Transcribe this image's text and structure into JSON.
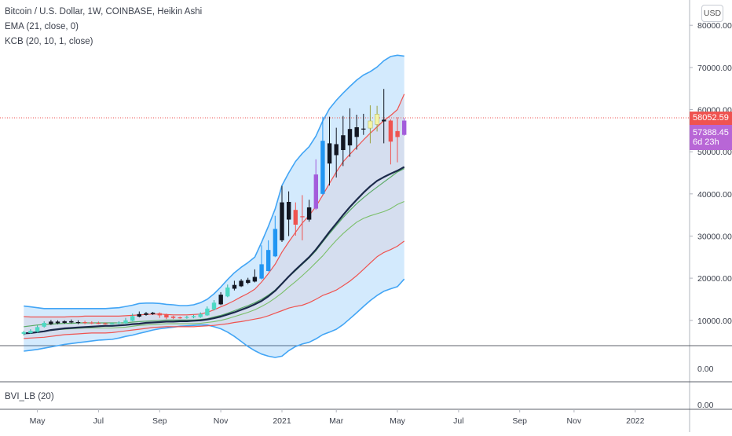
{
  "header": {
    "symbol_line": "Bitcoin / U.S. Dollar, 1W, COINBASE, Heikin Ashi",
    "ema_label": "EMA (21, close, 0)",
    "kcb_label": "KCB (20, 10, 1, close)"
  },
  "currency_button": "USD",
  "price_tags": {
    "last_price": "58052.59",
    "current_price": "57388.45",
    "countdown": "6d 23h"
  },
  "lower_pane": {
    "indicator1_tick": "0.00",
    "indicator2_label": "BVI_LB (20)",
    "indicator2_tick": "0.00"
  },
  "colors": {
    "bull_cyan": "#4dd9c4",
    "bear_red": "#ef5350",
    "black_candle": "#131722",
    "blue_candle": "#2196f3",
    "violet_candle": "#a35ddb",
    "yellow_candle": "#f4f4a6",
    "band_outer": "#42a5f5",
    "band_red": "#ef5350",
    "band_green": "#5aaa66",
    "ema_dark": "#1b2a4a",
    "last_price_tag": "#ef5350",
    "current_price_tag": "#b866d6"
  },
  "chart_data": {
    "type": "candlestick",
    "title": "Bitcoin / U.S. Dollar, 1W, COINBASE, Heikin Ashi",
    "y_axis": {
      "ticks": [
        "10000.00",
        "20000.00",
        "30000.00",
        "40000.00",
        "50000.00",
        "60000.00",
        "70000.00",
        "80000.00"
      ],
      "tick_values": [
        10000,
        20000,
        30000,
        40000,
        50000,
        60000,
        70000,
        80000
      ],
      "range": [
        4000,
        86000
      ]
    },
    "x_axis": {
      "ticks": [
        "May",
        "Jul",
        "Sep",
        "Nov",
        "2021",
        "Mar",
        "May",
        "Jul",
        "Sep",
        "Nov",
        "2022"
      ],
      "tick_index": [
        2,
        11,
        20,
        29,
        38,
        46,
        55,
        64,
        73,
        81,
        90
      ],
      "index_range": [
        -3.5,
        98
      ]
    },
    "candles": [
      {
        "i": 0,
        "o": 6800,
        "c": 7200,
        "h": 7500,
        "l": 6400,
        "color": "bull_cyan"
      },
      {
        "i": 1,
        "o": 7000,
        "c": 7500,
        "h": 7900,
        "l": 6800,
        "color": "bull_cyan"
      },
      {
        "i": 2,
        "o": 7300,
        "c": 8400,
        "h": 8800,
        "l": 7100,
        "color": "bull_cyan"
      },
      {
        "i": 3,
        "o": 8500,
        "c": 9400,
        "h": 9800,
        "l": 8300,
        "color": "bull_cyan"
      },
      {
        "i": 4,
        "o": 9100,
        "c": 9700,
        "h": 10100,
        "l": 8900,
        "color": "black_candle"
      },
      {
        "i": 5,
        "o": 9300,
        "c": 9700,
        "h": 10000,
        "l": 9100,
        "color": "black_candle"
      },
      {
        "i": 6,
        "o": 9400,
        "c": 9800,
        "h": 10000,
        "l": 9200,
        "color": "black_candle"
      },
      {
        "i": 7,
        "o": 9500,
        "c": 9800,
        "h": 10200,
        "l": 9300,
        "color": "black_candle"
      },
      {
        "i": 8,
        "o": 9400,
        "c": 9600,
        "h": 10000,
        "l": 9100,
        "color": "black_candle"
      },
      {
        "i": 9,
        "o": 9600,
        "c": 9400,
        "h": 9900,
        "l": 9100,
        "color": "bear_red"
      },
      {
        "i": 10,
        "o": 9500,
        "c": 9300,
        "h": 9800,
        "l": 9100,
        "color": "bear_red"
      },
      {
        "i": 11,
        "o": 9400,
        "c": 9300,
        "h": 9700,
        "l": 9100,
        "color": "bear_red"
      },
      {
        "i": 12,
        "o": 9300,
        "c": 9200,
        "h": 9500,
        "l": 9000,
        "color": "bear_red"
      },
      {
        "i": 13,
        "o": 9200,
        "c": 9300,
        "h": 9500,
        "l": 9000,
        "color": "bull_cyan"
      },
      {
        "i": 14,
        "o": 9300,
        "c": 9500,
        "h": 9800,
        "l": 9100,
        "color": "bull_cyan"
      },
      {
        "i": 15,
        "o": 9300,
        "c": 10000,
        "h": 10600,
        "l": 9200,
        "color": "bull_cyan"
      },
      {
        "i": 16,
        "o": 9900,
        "c": 11000,
        "h": 11600,
        "l": 9800,
        "color": "bull_cyan"
      },
      {
        "i": 17,
        "o": 10900,
        "c": 11500,
        "h": 12100,
        "l": 10700,
        "color": "black_candle"
      },
      {
        "i": 18,
        "o": 11300,
        "c": 11700,
        "h": 12000,
        "l": 11100,
        "color": "black_candle"
      },
      {
        "i": 19,
        "o": 11500,
        "c": 11800,
        "h": 12000,
        "l": 11300,
        "color": "black_candle"
      },
      {
        "i": 20,
        "o": 11700,
        "c": 11200,
        "h": 11900,
        "l": 10600,
        "color": "bear_red"
      },
      {
        "i": 21,
        "o": 11400,
        "c": 10700,
        "h": 11600,
        "l": 10300,
        "color": "bear_red"
      },
      {
        "i": 22,
        "o": 10900,
        "c": 10600,
        "h": 11100,
        "l": 10300,
        "color": "bear_red"
      },
      {
        "i": 23,
        "o": 10700,
        "c": 10600,
        "h": 10900,
        "l": 10400,
        "color": "bear_red"
      },
      {
        "i": 24,
        "o": 10600,
        "c": 10800,
        "h": 11100,
        "l": 10400,
        "color": "bull_cyan"
      },
      {
        "i": 25,
        "o": 10700,
        "c": 11000,
        "h": 11300,
        "l": 10500,
        "color": "bull_cyan"
      },
      {
        "i": 26,
        "o": 10800,
        "c": 11500,
        "h": 11900,
        "l": 10600,
        "color": "bull_cyan"
      },
      {
        "i": 27,
        "o": 11200,
        "c": 12800,
        "h": 13300,
        "l": 11100,
        "color": "bull_cyan"
      },
      {
        "i": 28,
        "o": 12600,
        "c": 14200,
        "h": 14800,
        "l": 12400,
        "color": "bull_cyan"
      },
      {
        "i": 29,
        "o": 13800,
        "c": 16100,
        "h": 16700,
        "l": 13600,
        "color": "black_candle"
      },
      {
        "i": 30,
        "o": 15700,
        "c": 17800,
        "h": 18500,
        "l": 15500,
        "color": "bull_cyan"
      },
      {
        "i": 31,
        "o": 17500,
        "c": 18400,
        "h": 19400,
        "l": 17100,
        "color": "black_candle"
      },
      {
        "i": 32,
        "o": 18100,
        "c": 19400,
        "h": 19800,
        "l": 17900,
        "color": "black_candle"
      },
      {
        "i": 33,
        "o": 18900,
        "c": 19600,
        "h": 20100,
        "l": 18600,
        "color": "black_candle"
      },
      {
        "i": 34,
        "o": 19200,
        "c": 20300,
        "h": 22100,
        "l": 19000,
        "color": "black_candle"
      },
      {
        "i": 35,
        "o": 19900,
        "c": 23300,
        "h": 27800,
        "l": 19700,
        "color": "blue_candle"
      },
      {
        "i": 36,
        "o": 21700,
        "c": 26700,
        "h": 29000,
        "l": 21600,
        "color": "blue_candle"
      },
      {
        "i": 37,
        "o": 25200,
        "c": 31700,
        "h": 34800,
        "l": 25000,
        "color": "blue_candle"
      },
      {
        "i": 38,
        "o": 29000,
        "c": 38000,
        "h": 41900,
        "l": 28600,
        "color": "black_candle"
      },
      {
        "i": 39,
        "o": 33900,
        "c": 38100,
        "h": 40600,
        "l": 30000,
        "color": "black_candle"
      },
      {
        "i": 40,
        "o": 36200,
        "c": 32700,
        "h": 38000,
        "l": 30100,
        "color": "bear_red"
      },
      {
        "i": 41,
        "o": 34700,
        "c": 34600,
        "h": 39700,
        "l": 29000,
        "color": "bear_red"
      },
      {
        "i": 42,
        "o": 33900,
        "c": 36800,
        "h": 38600,
        "l": 33400,
        "color": "black_candle"
      },
      {
        "i": 43,
        "o": 36500,
        "c": 44600,
        "h": 48200,
        "l": 36200,
        "color": "violet_candle"
      },
      {
        "i": 44,
        "o": 40000,
        "c": 52600,
        "h": 58300,
        "l": 39800,
        "color": "blue_candle"
      },
      {
        "i": 45,
        "o": 47200,
        "c": 52000,
        "h": 58300,
        "l": 42000,
        "color": "black_candle"
      },
      {
        "i": 46,
        "o": 49200,
        "c": 51800,
        "h": 55700,
        "l": 43900,
        "color": "black_candle"
      },
      {
        "i": 47,
        "o": 50400,
        "c": 53900,
        "h": 58500,
        "l": 46600,
        "color": "black_candle"
      },
      {
        "i": 48,
        "o": 51500,
        "c": 55400,
        "h": 60300,
        "l": 48800,
        "color": "black_candle"
      },
      {
        "i": 49,
        "o": 53500,
        "c": 55800,
        "h": 58800,
        "l": 50500,
        "color": "black_candle"
      },
      {
        "i": 50,
        "o": 55500,
        "c": 55300,
        "h": 59000,
        "l": 54000,
        "color": "black_candle"
      },
      {
        "i": 51,
        "o": 55600,
        "c": 57300,
        "h": 61000,
        "l": 52000,
        "color": "yellow_candle"
      },
      {
        "i": 52,
        "o": 56500,
        "c": 58900,
        "h": 60900,
        "l": 54800,
        "color": "yellow_candle"
      },
      {
        "i": 53,
        "o": 57600,
        "c": 57200,
        "h": 64900,
        "l": 52000,
        "color": "black_candle"
      },
      {
        "i": 54,
        "o": 57400,
        "c": 52400,
        "h": 57700,
        "l": 47000,
        "color": "bear_red"
      },
      {
        "i": 55,
        "o": 54900,
        "c": 53500,
        "h": 58200,
        "l": 47500,
        "color": "bear_red"
      },
      {
        "i": 56,
        "o": 54000,
        "c": 57388,
        "h": 58000,
        "l": 53800,
        "color": "violet_candle"
      }
    ],
    "bands": {
      "upper_outer": [
        13400,
        13200,
        13000,
        12800,
        12800,
        12800,
        12800,
        12800,
        12800,
        12800,
        12800,
        12800,
        12800,
        12900,
        13000,
        13300,
        13600,
        14000,
        14100,
        14100,
        14000,
        13800,
        13700,
        13500,
        13500,
        13700,
        14200,
        15000,
        16300,
        17900,
        19700,
        21300,
        22600,
        23700,
        25000,
        28500,
        32300,
        36400,
        42000,
        45000,
        47700,
        49600,
        51200,
        53700,
        57300,
        60200,
        62200,
        63900,
        65500,
        67000,
        68200,
        69000,
        70100,
        71600,
        72600,
        72900,
        72700
      ],
      "upper_red": [
        10900,
        10800,
        10800,
        10800,
        10800,
        10800,
        10800,
        10900,
        10900,
        11000,
        11000,
        11000,
        11000,
        11000,
        11000,
        11100,
        11200,
        11300,
        11400,
        11500,
        11500,
        11400,
        11300,
        11300,
        11300,
        11400,
        11500,
        11900,
        12500,
        13200,
        13900,
        14700,
        15600,
        16400,
        17400,
        19100,
        21100,
        23300,
        26200,
        28600,
        30900,
        33100,
        34900,
        37000,
        39700,
        42500,
        45200,
        47600,
        49400,
        51100,
        52800,
        54400,
        55900,
        57400,
        58600,
        60000,
        63700
      ],
      "mid_green": [
        8500,
        8700,
        8900,
        9000,
        9100,
        9200,
        9300,
        9300,
        9400,
        9400,
        9400,
        9400,
        9400,
        9400,
        9400,
        9400,
        9600,
        9700,
        9800,
        9900,
        10000,
        10100,
        10100,
        10100,
        10100,
        10100,
        10200,
        10400,
        10800,
        11200,
        11700,
        12300,
        12900,
        13500,
        14200,
        15000,
        16000,
        17200,
        18800,
        20300,
        21800,
        23300,
        24800,
        26500,
        28600,
        30600,
        32500,
        34400,
        36100,
        37700,
        39100,
        40400,
        41600,
        42800,
        44000,
        45200,
        46000
      ],
      "mid_lime": [
        7000,
        7100,
        7200,
        7400,
        7600,
        7800,
        7900,
        8000,
        8100,
        8200,
        8200,
        8200,
        8200,
        8200,
        8300,
        8400,
        8600,
        8800,
        8900,
        9000,
        9100,
        9200,
        9200,
        9200,
        9200,
        9200,
        9300,
        9500,
        9700,
        10000,
        10400,
        10900,
        11400,
        11900,
        12500,
        13300,
        14200,
        15300,
        16500,
        17900,
        19200,
        20600,
        22100,
        23700,
        25300,
        27200,
        29000,
        30600,
        32000,
        33300,
        34200,
        34800,
        35300,
        35800,
        36500,
        37500,
        38200
      ],
      "lower_red": [
        5700,
        5800,
        5900,
        6000,
        6200,
        6400,
        6600,
        6700,
        6800,
        6900,
        7000,
        7000,
        7000,
        7100,
        7300,
        7500,
        7700,
        7900,
        8100,
        8300,
        8400,
        8500,
        8500,
        8500,
        8500,
        8500,
        8600,
        8700,
        8800,
        9000,
        9200,
        9500,
        9700,
        10000,
        10300,
        10600,
        11100,
        11700,
        12300,
        12900,
        13300,
        13600,
        14200,
        15000,
        15900,
        16500,
        17200,
        18200,
        19300,
        20600,
        22100,
        23600,
        25100,
        26100,
        26800,
        27600,
        28800
      ],
      "lower_outer": [
        2700,
        2900,
        3100,
        3400,
        3700,
        4000,
        4300,
        4500,
        4700,
        4900,
        5100,
        5300,
        5400,
        5500,
        5800,
        6200,
        6500,
        6900,
        7300,
        7700,
        8000,
        8200,
        8400,
        8600,
        8700,
        8800,
        8900,
        8900,
        8500,
        8000,
        7200,
        6200,
        5000,
        3800,
        2800,
        2000,
        1500,
        1200,
        1500,
        2800,
        3800,
        4400,
        4800,
        5600,
        6600,
        7200,
        7900,
        9000,
        10400,
        11800,
        13300,
        14700,
        15900,
        16900,
        17500,
        18000,
        19800
      ],
      "ema21": [
        6900,
        7000,
        7200,
        7400,
        7700,
        7900,
        8100,
        8200,
        8300,
        8400,
        8500,
        8600,
        8700,
        8700,
        8800,
        8900,
        9100,
        9200,
        9400,
        9500,
        9600,
        9700,
        9700,
        9800,
        9800,
        9900,
        10000,
        10200,
        10500,
        10900,
        11400,
        11900,
        12500,
        13100,
        13800,
        14600,
        15700,
        17000,
        18700,
        20400,
        22000,
        23500,
        25000,
        26800,
        28900,
        31000,
        33000,
        35000,
        36900,
        38600,
        40300,
        41800,
        43100,
        44000,
        44800,
        45500,
        46400
      ]
    },
    "last_price_line": 58052.59,
    "current_price": 57388.45
  }
}
